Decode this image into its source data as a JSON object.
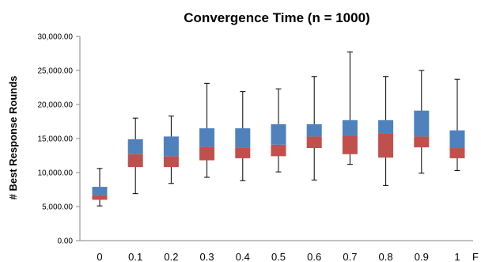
{
  "chart_data": {
    "type": "boxplot",
    "title": "Convergence Time (n = 1000)",
    "ylabel": "# Best Response Rounds",
    "xlabel_partial": "F",
    "ylim": [
      0,
      30000
    ],
    "yticks": [
      "0.00",
      "5,000.00",
      "10,000.00",
      "15,000.00",
      "20,000.00",
      "25,000.00",
      "30,000.00"
    ],
    "ytick_values": [
      0,
      5000,
      10000,
      15000,
      20000,
      25000,
      30000
    ],
    "colors": {
      "lower_box": "#c0504d",
      "upper_box": "#4f81bd",
      "whisker": "#000000",
      "axis": "#868686"
    },
    "categories": [
      "0",
      "0.1",
      "0.2",
      "0.3",
      "0.4",
      "0.5",
      "0.6",
      "0.7",
      "0.8",
      "0.9",
      "1"
    ],
    "series": [
      {
        "x": "0",
        "min": 5100,
        "q1": 6000,
        "median": 6700,
        "q3": 7900,
        "max": 10600
      },
      {
        "x": "0.1",
        "min": 6900,
        "q1": 10800,
        "median": 12700,
        "q3": 14900,
        "max": 18000
      },
      {
        "x": "0.2",
        "min": 8400,
        "q1": 10800,
        "median": 12400,
        "q3": 15300,
        "max": 18300
      },
      {
        "x": "0.3",
        "min": 9300,
        "q1": 11800,
        "median": 13800,
        "q3": 16500,
        "max": 23100
      },
      {
        "x": "0.4",
        "min": 8800,
        "q1": 12100,
        "median": 13700,
        "q3": 16500,
        "max": 21900
      },
      {
        "x": "0.5",
        "min": 10100,
        "q1": 12400,
        "median": 14100,
        "q3": 17100,
        "max": 22300
      },
      {
        "x": "0.6",
        "min": 8900,
        "q1": 13600,
        "median": 15300,
        "q3": 17100,
        "max": 24100
      },
      {
        "x": "0.7",
        "min": 11200,
        "q1": 12700,
        "median": 15400,
        "q3": 17700,
        "max": 27700
      },
      {
        "x": "0.8",
        "min": 8100,
        "q1": 12200,
        "median": 15800,
        "q3": 17700,
        "max": 24100
      },
      {
        "x": "0.9",
        "min": 9900,
        "q1": 13700,
        "median": 15300,
        "q3": 19100,
        "max": 25000
      },
      {
        "x": "1",
        "min": 10300,
        "q1": 12100,
        "median": 13600,
        "q3": 16200,
        "max": 23700
      }
    ]
  }
}
